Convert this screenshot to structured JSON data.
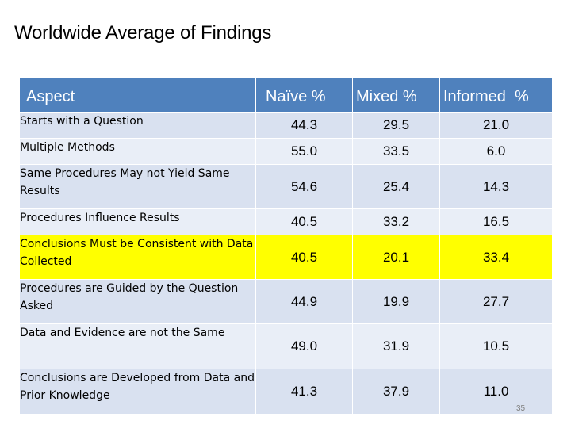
{
  "title": "Worldwide Average of Findings",
  "table": {
    "headers": [
      "Aspect",
      "Naïve %",
      "Mixed %",
      "Informed  %"
    ],
    "rows": [
      {
        "aspect": "Starts with a Question",
        "naive": "44.3",
        "mixed": "29.5",
        "informed": "21.0",
        "highlighted": false
      },
      {
        "aspect": "Multiple Methods",
        "naive": "55.0",
        "mixed": "33.5",
        "informed": "6.0",
        "highlighted": false
      },
      {
        "aspect": "Same Procedures May not Yield Same Results",
        "naive": "54.6",
        "mixed": "25.4",
        "informed": "14.3",
        "highlighted": false
      },
      {
        "aspect": "Procedures Influence Results",
        "naive": "40.5",
        "mixed": "33.2",
        "informed": "16.5",
        "highlighted": false
      },
      {
        "aspect": "Conclusions Must be Consistent with Data Collected",
        "naive": "40.5",
        "mixed": "20.1",
        "informed": "33.4",
        "highlighted": true
      },
      {
        "aspect": "Procedures are Guided by the Question Asked",
        "naive": "44.9",
        "mixed": "19.9",
        "informed": "27.7",
        "highlighted": false
      },
      {
        "aspect": "Data and Evidence are not the Same",
        "naive": "49.0",
        "mixed": "31.9",
        "informed": "10.5",
        "highlighted": false
      },
      {
        "aspect": "Conclusions are Developed from Data and Prior Knowledge",
        "naive": "41.3",
        "mixed": "37.9",
        "informed": "11.0",
        "highlighted": false
      }
    ]
  },
  "colors": {
    "header_bg": "#4f81bd",
    "row_bg": "#d9e1f0",
    "row_alt_bg": "#e9eef7",
    "highlight_bg": "#ffff00"
  },
  "page_number": "35"
}
